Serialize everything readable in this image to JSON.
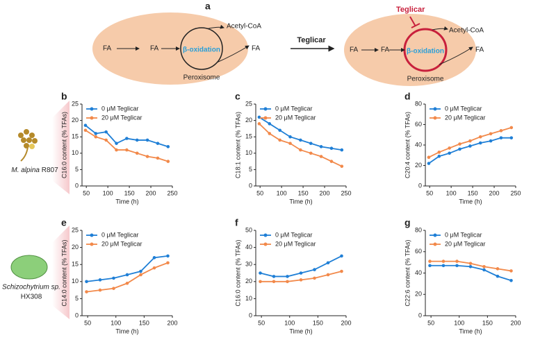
{
  "panel_a": {
    "label": "a",
    "left": {
      "fa_in": "FA",
      "fa_mid": "FA",
      "center": "β-oxidation",
      "product": "Acetyl-CoA",
      "fa_out": "FA",
      "organelle": "Peroxisome"
    },
    "arrow_label": "Teglicar",
    "right": {
      "inhibitor": "Teglicar",
      "fa_in": "FA",
      "fa_mid": "FA",
      "center": "β-oxidation",
      "product": "Acetyl-CoA",
      "fa_out": "FA",
      "organelle": "Peroxisome"
    }
  },
  "organisms": [
    {
      "name": "M. alpina",
      "strain": "R807"
    },
    {
      "name": "Schizochytrium sp.",
      "strain": "HX308"
    }
  ],
  "chart_data": [
    {
      "type": "scatter",
      "panel": "b",
      "xlabel": "Time (h)",
      "ylabel": "C16:0 content (% TFAs)",
      "x": [
        48,
        72,
        96,
        120,
        144,
        168,
        192,
        216,
        240
      ],
      "xlim": [
        40,
        250
      ],
      "xticks": [
        50,
        100,
        150,
        200,
        250
      ],
      "ylim": [
        0,
        25
      ],
      "yticks": [
        0,
        5,
        10,
        15,
        20,
        25
      ],
      "series": [
        {
          "name": "0 μM Teglicar",
          "color": "#1f7fd6",
          "values": [
            18.5,
            16,
            16.5,
            13,
            14.5,
            14,
            14,
            13,
            12
          ]
        },
        {
          "name": "20 μM Teglicar",
          "color": "#f2894a",
          "values": [
            17,
            15,
            14,
            11,
            11,
            10,
            9,
            8.5,
            7.5
          ]
        }
      ]
    },
    {
      "type": "scatter",
      "panel": "c",
      "xlabel": "Time (h)",
      "ylabel": "C18:1 content (% TFAs)",
      "x": [
        48,
        72,
        96,
        120,
        144,
        168,
        192,
        216,
        240
      ],
      "xlim": [
        40,
        250
      ],
      "xticks": [
        50,
        100,
        150,
        200,
        250
      ],
      "ylim": [
        0,
        25
      ],
      "yticks": [
        0,
        5,
        10,
        15,
        20,
        25
      ],
      "series": [
        {
          "name": "0 μM Teglicar",
          "color": "#1f7fd6",
          "values": [
            21,
            19,
            17,
            15,
            14,
            13,
            12,
            11.5,
            11
          ]
        },
        {
          "name": "20 μM Teglicar",
          "color": "#f2894a",
          "values": [
            19,
            16,
            14,
            13,
            11,
            10,
            9,
            7.5,
            6
          ]
        }
      ]
    },
    {
      "type": "scatter",
      "panel": "d",
      "xlabel": "Time (h)",
      "ylabel": "C20:4 content (% TFAs)",
      "x": [
        48,
        72,
        96,
        120,
        144,
        168,
        192,
        216,
        240
      ],
      "xlim": [
        40,
        250
      ],
      "xticks": [
        50,
        100,
        150,
        200,
        250
      ],
      "ylim": [
        0,
        80
      ],
      "yticks": [
        0,
        20,
        40,
        60,
        80
      ],
      "series": [
        {
          "name": "0 μM Teglicar",
          "color": "#1f7fd6",
          "values": [
            22,
            29,
            32,
            36,
            39,
            42,
            44,
            47,
            47
          ]
        },
        {
          "name": "20 μM Teglicar",
          "color": "#f2894a",
          "values": [
            28,
            33,
            37,
            41,
            44,
            48,
            51,
            54,
            57
          ]
        }
      ]
    },
    {
      "type": "scatter",
      "panel": "e",
      "xlabel": "Time (h)",
      "ylabel": "C14:0 content (% TFAs)",
      "x": [
        48,
        72,
        96,
        120,
        144,
        168,
        192
      ],
      "xlim": [
        40,
        200
      ],
      "xticks": [
        50,
        100,
        150,
        200
      ],
      "ylim": [
        0,
        25
      ],
      "yticks": [
        0,
        5,
        10,
        15,
        20,
        25
      ],
      "series": [
        {
          "name": "0 μM Teglicar",
          "color": "#1f7fd6",
          "values": [
            10,
            10.5,
            11,
            12,
            13,
            17,
            17.5
          ]
        },
        {
          "name": "20 μM Teglicar",
          "color": "#f2894a",
          "values": [
            7,
            7.5,
            8,
            9.5,
            12,
            14,
            15.5
          ]
        }
      ]
    },
    {
      "type": "scatter",
      "panel": "f",
      "xlabel": "Time (h)",
      "ylabel": "C16:0 content (% TFAs)",
      "x": [
        48,
        72,
        96,
        120,
        144,
        168,
        192
      ],
      "xlim": [
        40,
        200
      ],
      "xticks": [
        50,
        100,
        150,
        200
      ],
      "ylim": [
        0,
        50
      ],
      "yticks": [
        0,
        10,
        20,
        30,
        40,
        50
      ],
      "series": [
        {
          "name": "0 μM Teglicar",
          "color": "#1f7fd6",
          "values": [
            25,
            23,
            23,
            25,
            27,
            31,
            35
          ]
        },
        {
          "name": "20 μM Teglicar",
          "color": "#f2894a",
          "values": [
            20,
            20,
            20,
            21,
            22,
            24,
            26
          ]
        }
      ]
    },
    {
      "type": "scatter",
      "panel": "g",
      "xlabel": "Time (h)",
      "ylabel": "C22:6 content (% TFAs)",
      "x": [
        48,
        72,
        96,
        120,
        144,
        168,
        192
      ],
      "xlim": [
        40,
        200
      ],
      "xticks": [
        50,
        100,
        150,
        200
      ],
      "ylim": [
        0,
        80
      ],
      "yticks": [
        0,
        20,
        40,
        60,
        80
      ],
      "series": [
        {
          "name": "0 μM Teglicar",
          "color": "#1f7fd6",
          "values": [
            47,
            47,
            47,
            46,
            43,
            37,
            33
          ]
        },
        {
          "name": "20 μM Teglicar",
          "color": "#f2894a",
          "values": [
            51,
            51,
            51,
            49,
            46,
            44,
            42
          ]
        }
      ]
    }
  ]
}
